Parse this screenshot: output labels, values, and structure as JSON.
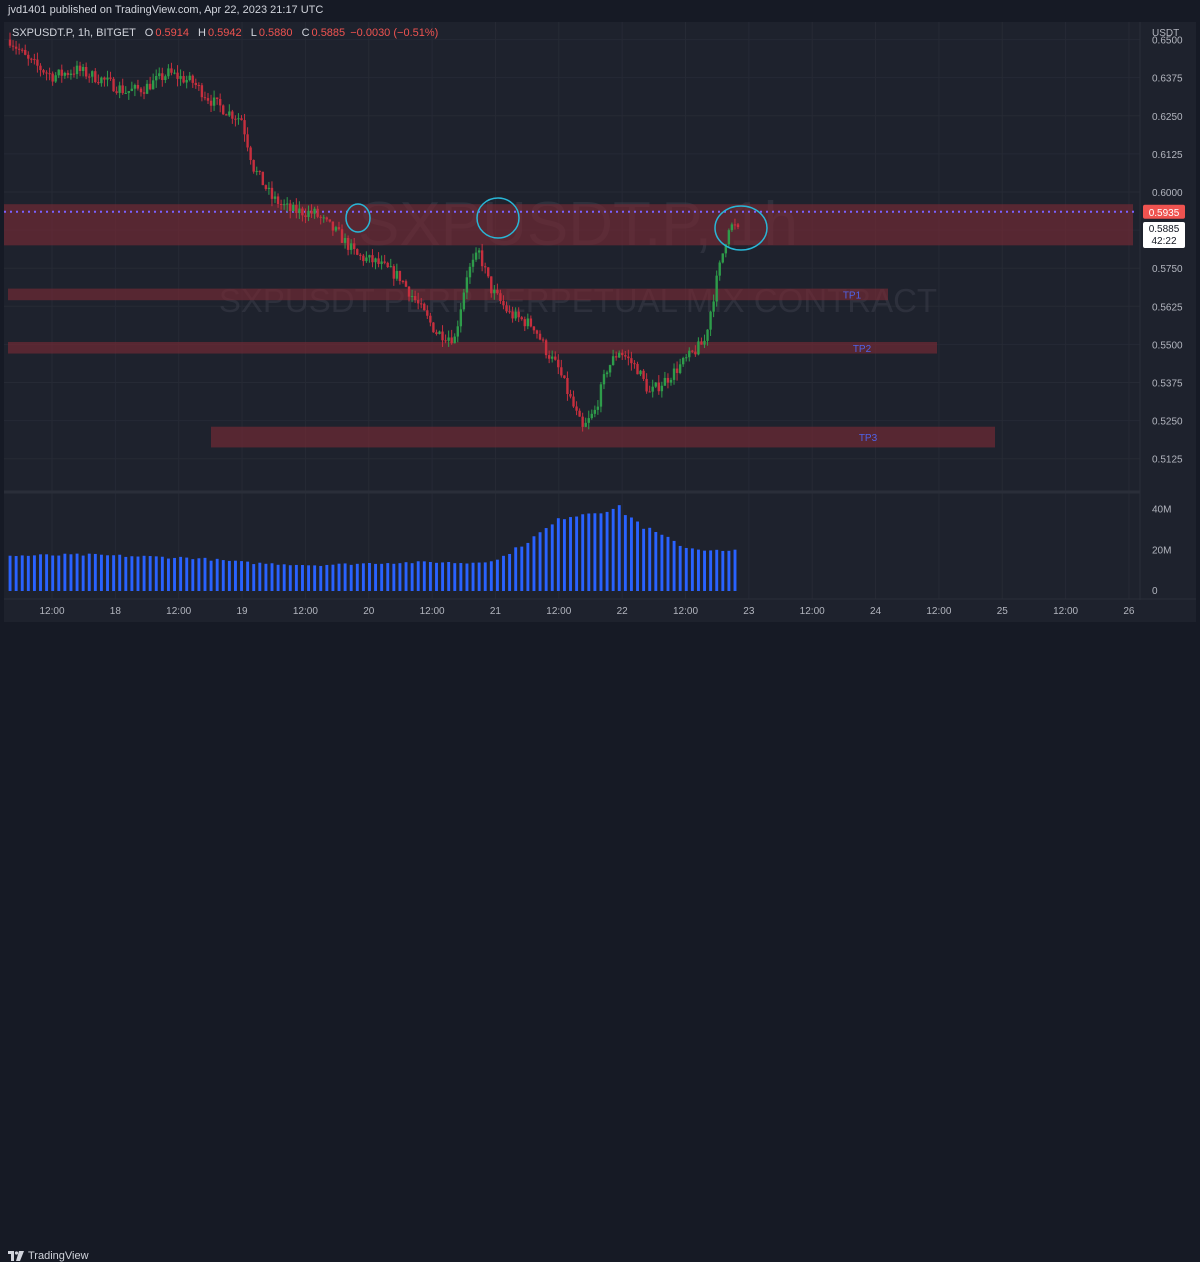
{
  "header": {
    "publisher_text": "jvd1401 published on TradingView.com, Apr 22, 2023 21:17 UTC"
  },
  "legend": {
    "symbol": "SXPUSDT.P, 1h, BITGET",
    "o_label": "O",
    "o_value": "0.5914",
    "h_label": "H",
    "h_value": "0.5942",
    "l_label": "L",
    "l_value": "0.5880",
    "c_label": "C",
    "c_value": "0.5885",
    "change": "−0.0030 (−0.51%)"
  },
  "watermark": {
    "title": "SXPUSDT.P, 1h",
    "subtitle": "SXPUSDT PERP PERPETUAL MIX CONTRACT"
  },
  "price_axis": {
    "currency": "USDT",
    "ticks": [
      "0.6500",
      "0.6375",
      "0.6250",
      "0.6125",
      "0.6000",
      "0.5875",
      "0.5750",
      "0.5625",
      "0.5500",
      "0.5375",
      "0.5250",
      "0.5125"
    ],
    "last_price_label": "0.5935",
    "current_price_label": "0.5885",
    "countdown": "42:22"
  },
  "volume_axis": {
    "ticks": [
      "40M",
      "20M",
      "0"
    ]
  },
  "time_axis": {
    "ticks": [
      "12:00",
      "18",
      "12:00",
      "19",
      "12:00",
      "20",
      "12:00",
      "21",
      "12:00",
      "22",
      "12:00",
      "23",
      "12:00",
      "24",
      "12:00",
      "25",
      "12:00",
      "26"
    ]
  },
  "zones": [
    {
      "label": "",
      "from": 0.5825,
      "to": 0.596
    },
    {
      "label": "TP1",
      "from": 0.5645,
      "to": 0.5683
    },
    {
      "label": "TP2",
      "from": 0.547,
      "to": 0.5508
    },
    {
      "label": "TP3",
      "from": 0.5162,
      "to": 0.523
    }
  ],
  "footer": {
    "brand": "TradingView"
  },
  "colors": {
    "up": "#26a69a",
    "down": "#ef5350",
    "wick_up": "#1b8f3f",
    "candle_up": "#2e7d32",
    "candle_down": "#b71c1c",
    "volume": "#2962ff",
    "zone": "#7a2a36",
    "dotted_line": "#7b61ff",
    "circle": "#29b6d6",
    "tp_text": "#4f63e8"
  },
  "chart_data": {
    "type": "candlestick",
    "title": "SXPUSDT.P, 1h, BITGET",
    "timeframe": "1h",
    "ylim": [
      0.5088,
      0.6538
    ],
    "volume_ylim": [
      0,
      44000000
    ],
    "annotations": [
      "TP1",
      "TP2",
      "TP3"
    ],
    "last_price": 0.5935,
    "current_price": 0.5885,
    "price_path": [
      [
        0,
        0.65
      ],
      [
        6,
        0.643
      ],
      [
        14,
        0.638
      ],
      [
        22,
        0.64
      ],
      [
        30,
        0.637
      ],
      [
        38,
        0.633
      ],
      [
        44,
        0.634
      ],
      [
        52,
        0.639
      ],
      [
        60,
        0.636
      ],
      [
        66,
        0.63
      ],
      [
        72,
        0.626
      ],
      [
        76,
        0.624
      ],
      [
        80,
        0.608
      ],
      [
        86,
        0.598
      ],
      [
        92,
        0.594
      ],
      [
        100,
        0.593
      ],
      [
        108,
        0.586
      ],
      [
        114,
        0.579
      ],
      [
        120,
        0.577
      ],
      [
        128,
        0.572
      ],
      [
        134,
        0.563
      ],
      [
        140,
        0.554
      ],
      [
        146,
        0.552
      ],
      [
        150,
        0.573
      ],
      [
        154,
        0.58
      ],
      [
        158,
        0.568
      ],
      [
        164,
        0.56
      ],
      [
        172,
        0.556
      ],
      [
        176,
        0.548
      ],
      [
        180,
        0.542
      ],
      [
        184,
        0.532
      ],
      [
        188,
        0.522
      ],
      [
        192,
        0.528
      ],
      [
        196,
        0.542
      ],
      [
        200,
        0.548
      ],
      [
        206,
        0.542
      ],
      [
        210,
        0.534
      ],
      [
        216,
        0.539
      ],
      [
        222,
        0.545
      ],
      [
        228,
        0.551
      ],
      [
        232,
        0.571
      ],
      [
        236,
        0.589
      ],
      [
        238,
        0.5885
      ]
    ],
    "volume_path": [
      [
        0,
        17000000
      ],
      [
        24,
        17500000
      ],
      [
        60,
        16000000
      ],
      [
        80,
        13500000
      ],
      [
        100,
        12500000
      ],
      [
        120,
        13500000
      ],
      [
        140,
        14000000
      ],
      [
        150,
        13500000
      ],
      [
        160,
        15000000
      ],
      [
        170,
        24000000
      ],
      [
        182,
        36000000
      ],
      [
        194,
        39000000
      ],
      [
        200,
        40000000
      ],
      [
        208,
        31000000
      ],
      [
        222,
        21000000
      ],
      [
        235,
        19000000
      ],
      [
        238,
        19500000
      ]
    ]
  }
}
